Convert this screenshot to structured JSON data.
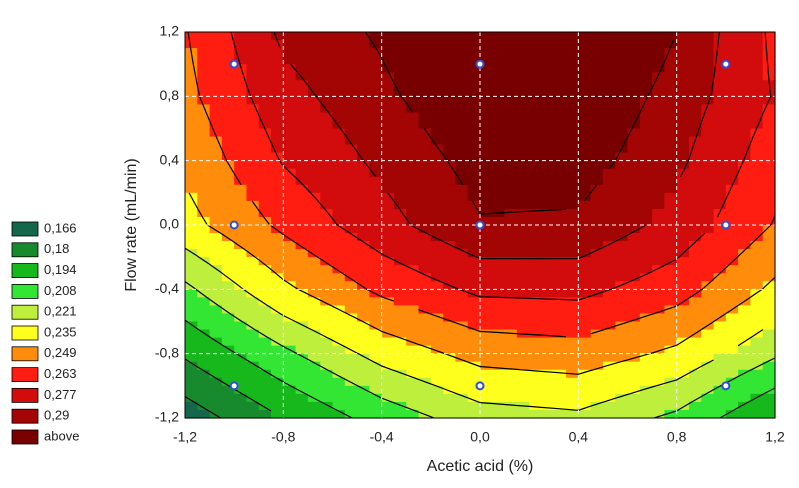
{
  "chart_data": {
    "type": "contour",
    "x_label": "Acetic acid (%)",
    "y_label": "Flow rate (mL/min)",
    "xlim": [
      -1.2,
      1.2
    ],
    "ylim": [
      -1.2,
      1.2
    ],
    "xticks": [
      {
        "value": -1.2,
        "label": "-1,2"
      },
      {
        "value": -0.8,
        "label": "-0,8"
      },
      {
        "value": -0.4,
        "label": "-0,4"
      },
      {
        "value": 0,
        "label": "0,0"
      },
      {
        "value": 0.4,
        "label": "0,4"
      },
      {
        "value": 0.8,
        "label": "0,8"
      },
      {
        "value": 1.2,
        "label": "1,2"
      }
    ],
    "yticks": [
      {
        "value": -1.2,
        "label": "-1,2"
      },
      {
        "value": -0.8,
        "label": "-0,8"
      },
      {
        "value": -0.4,
        "label": "-0,4"
      },
      {
        "value": 0,
        "label": "0,0"
      },
      {
        "value": 0.4,
        "label": "0,4"
      },
      {
        "value": 0.8,
        "label": "0,8"
      },
      {
        "value": 1.2,
        "label": "1,2"
      }
    ],
    "grid": true,
    "x": [
      -1.2,
      -0.8,
      -0.4,
      0,
      0.4,
      0.8,
      1.2
    ],
    "y": [
      1.2,
      0.8,
      0.4,
      0,
      -0.4,
      -0.8,
      -1.2
    ],
    "z": [
      [
        0.248,
        0.28,
        0.292,
        0.31,
        0.31,
        0.29,
        0.26
      ],
      [
        0.245,
        0.272,
        0.287,
        0.302,
        0.302,
        0.285,
        0.262
      ],
      [
        0.238,
        0.264,
        0.28,
        0.295,
        0.296,
        0.28,
        0.255
      ],
      [
        0.23,
        0.252,
        0.272,
        0.289,
        0.288,
        0.272,
        0.248
      ],
      [
        0.205,
        0.232,
        0.252,
        0.266,
        0.267,
        0.255,
        0.232
      ],
      [
        0.182,
        0.205,
        0.226,
        0.24,
        0.243,
        0.232,
        0.21
      ],
      [
        0.158,
        0.18,
        0.2,
        0.215,
        0.218,
        0.205,
        0.18
      ]
    ],
    "levels": [
      {
        "value": 0.166,
        "label": "0,166"
      },
      {
        "value": 0.18,
        "label": "0,18"
      },
      {
        "value": 0.194,
        "label": "0,194"
      },
      {
        "value": 0.208,
        "label": "0,208"
      },
      {
        "value": 0.221,
        "label": "0,221"
      },
      {
        "value": 0.235,
        "label": "0,235"
      },
      {
        "value": 0.249,
        "label": "0,249"
      },
      {
        "value": 0.263,
        "label": "0,263"
      },
      {
        "value": 0.277,
        "label": "0,277"
      },
      {
        "value": 0.29,
        "label": "0,29"
      }
    ],
    "level_colors": [
      "#14674a",
      "#178a2e",
      "#16b81c",
      "#33e633",
      "#bdef3c",
      "#ffff1e",
      "#ff8c0a",
      "#ff1c10",
      "#d20c0c",
      "#a30404"
    ],
    "above_label": "above",
    "above_color": "#780000",
    "points": {
      "x": [
        -1,
        0,
        1,
        -1,
        0,
        1,
        -1,
        0,
        1
      ],
      "y": [
        1,
        1,
        1,
        0,
        0,
        0,
        -1,
        -1,
        -1
      ],
      "color": "#2f4fd8"
    }
  }
}
